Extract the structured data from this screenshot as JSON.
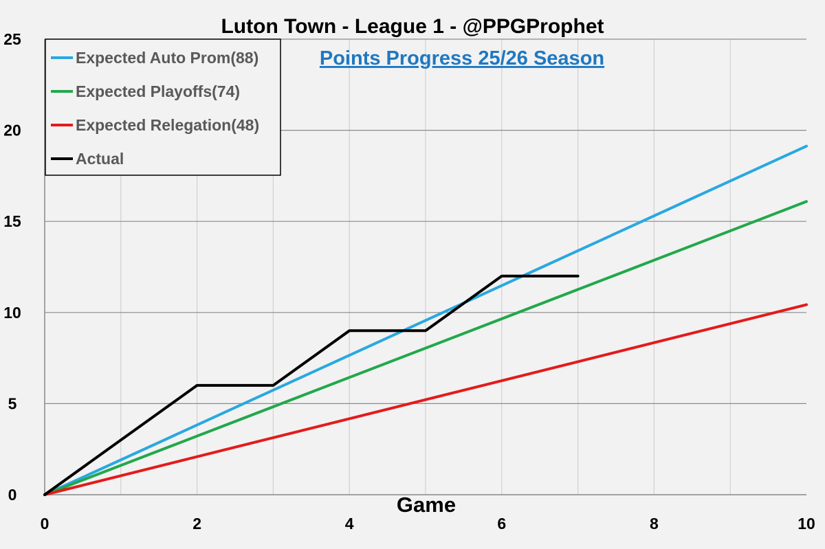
{
  "chart_data": {
    "type": "line",
    "title": "Luton Town - League 1 - @PPGProphet",
    "subtitle": "Points Progress 25/26 Season",
    "xlabel": "Game",
    "ylabel": "",
    "xlim": [
      0,
      10
    ],
    "ylim": [
      0,
      25
    ],
    "x_ticks": [
      0,
      2,
      4,
      6,
      8,
      10
    ],
    "y_ticks": [
      0,
      5,
      10,
      15,
      20,
      25
    ],
    "grid": true,
    "legend_position": "top-left",
    "series": [
      {
        "name": "Expected Auto Prom(88)",
        "color": "#29a8e0",
        "x": [
          0,
          10
        ],
        "y": [
          0,
          19.13
        ]
      },
      {
        "name": "Expected Playoffs(74)",
        "color": "#22a84b",
        "x": [
          0,
          10
        ],
        "y": [
          0,
          16.09
        ]
      },
      {
        "name": "Expected Relegation(48)",
        "color": "#e31b1b",
        "x": [
          0,
          10
        ],
        "y": [
          0,
          10.43
        ]
      },
      {
        "name": "Actual",
        "color": "#000000",
        "x": [
          0,
          1,
          2,
          3,
          4,
          5,
          6,
          7
        ],
        "y": [
          0,
          3,
          6,
          6,
          9,
          9,
          12,
          12
        ]
      }
    ]
  }
}
